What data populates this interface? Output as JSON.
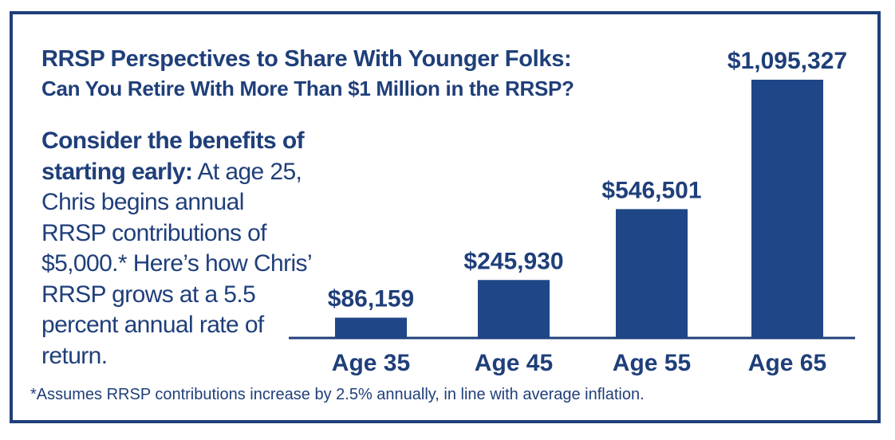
{
  "description": {
    "lead_bold": "Consider the benefits of starting early:",
    "body": " At age 25, Chris begins annual RRSP contributions of $5,000.* Here’s how Chris’ RRSP grows at a 5.5 percent annual rate of return."
  },
  "footnote": "*Assumes RRSP contributions increase by 2.5% annually, in line with average inflation.",
  "colors": {
    "primary": "#1f3f7a",
    "bar": "#1f4788",
    "background": "#ffffff"
  },
  "chart_data": {
    "type": "bar",
    "title": "RRSP Perspectives to Share With Younger Folks:",
    "subtitle": "Can You Retire With More Than $1 Million in the RRSP?",
    "categories": [
      "Age 35",
      "Age 45",
      "Age 55",
      "Age 65"
    ],
    "values": [
      86159,
      245930,
      546501,
      1095327
    ],
    "labels": [
      "$86,159",
      "$245,930",
      "$546,501",
      "$1,095,327"
    ],
    "xlabel": "",
    "ylabel": "",
    "ylim": [
      0,
      1095327
    ],
    "grid": false,
    "legend": "none"
  }
}
